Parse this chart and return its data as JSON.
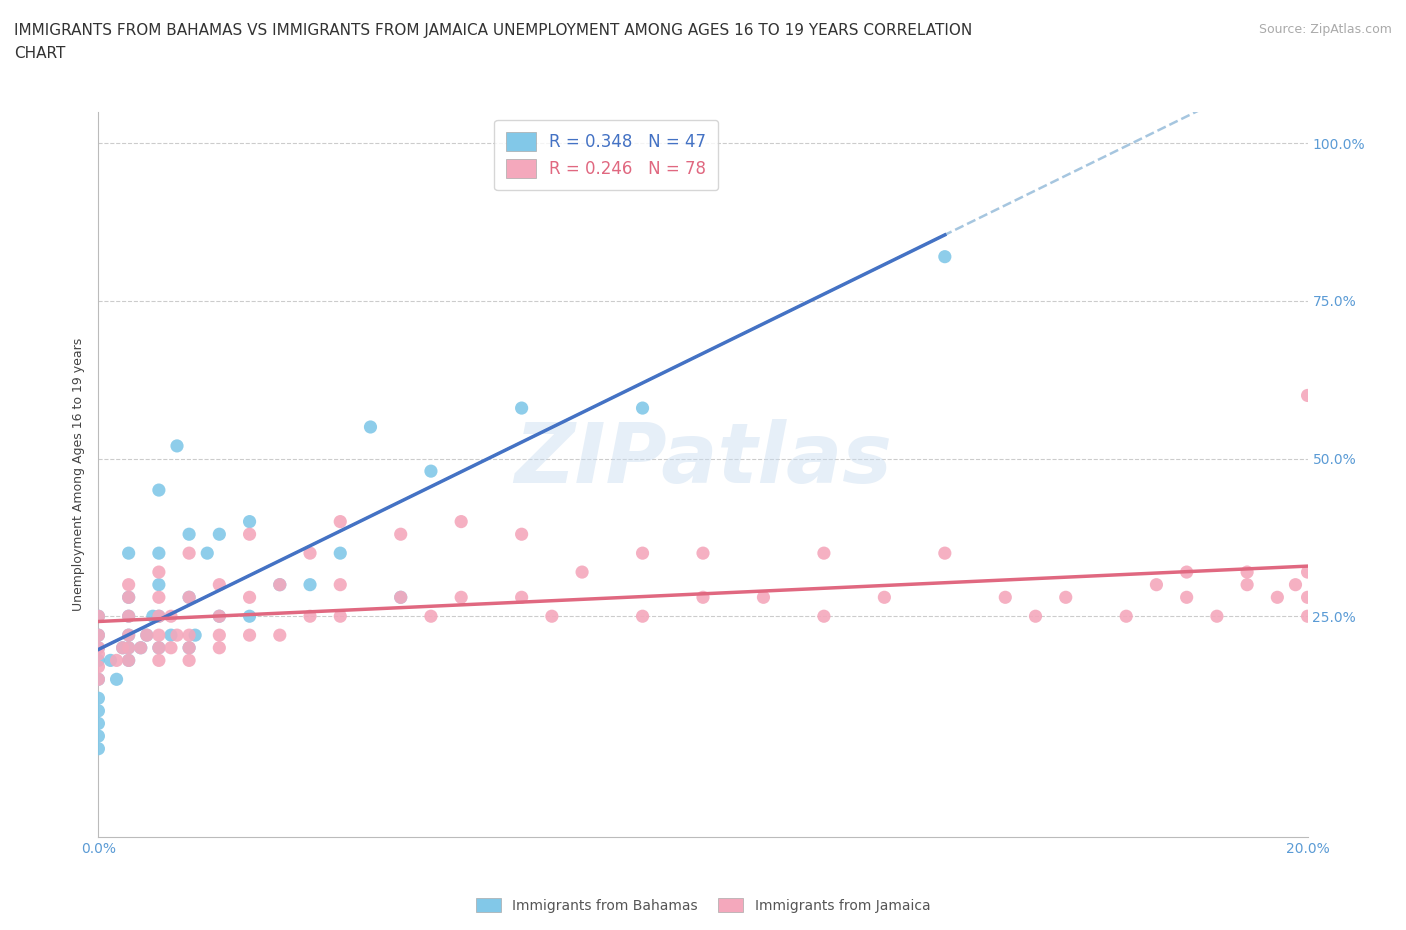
{
  "title": "IMMIGRANTS FROM BAHAMAS VS IMMIGRANTS FROM JAMAICA UNEMPLOYMENT AMONG AGES 16 TO 19 YEARS CORRELATION\nCHART",
  "source": "Source: ZipAtlas.com",
  "ylabel": "Unemployment Among Ages 16 to 19 years",
  "xlim": [
    0.0,
    0.2
  ],
  "ylim": [
    -0.1,
    1.05
  ],
  "xticks": [
    0.0,
    0.04,
    0.08,
    0.12,
    0.16,
    0.2
  ],
  "yticks": [
    0.25,
    0.5,
    0.75,
    1.0
  ],
  "yticklabels": [
    "25.0%",
    "50.0%",
    "75.0%",
    "100.0%"
  ],
  "legend1_R": "0.348",
  "legend1_N": "47",
  "legend2_R": "0.246",
  "legend2_N": "78",
  "color_bahamas": "#82C8E8",
  "color_jamaica": "#F4A8BC",
  "color_bahamas_line": "#4472C4",
  "color_jamaica_line": "#E06880",
  "color_axis_labels": "#5B9BD5",
  "watermark": "ZIPatlas",
  "bahamas_x": [
    0.0,
    0.0,
    0.0,
    0.0,
    0.0,
    0.0,
    0.0,
    0.0,
    0.0,
    0.0,
    0.002,
    0.003,
    0.004,
    0.005,
    0.005,
    0.005,
    0.005,
    0.005,
    0.005,
    0.007,
    0.008,
    0.009,
    0.01,
    0.01,
    0.01,
    0.01,
    0.01,
    0.012,
    0.013,
    0.015,
    0.015,
    0.015,
    0.016,
    0.018,
    0.02,
    0.02,
    0.025,
    0.025,
    0.03,
    0.035,
    0.04,
    0.045,
    0.05,
    0.055,
    0.07,
    0.09,
    0.14
  ],
  "bahamas_y": [
    0.04,
    0.06,
    0.08,
    0.1,
    0.12,
    0.15,
    0.18,
    0.2,
    0.22,
    0.25,
    0.18,
    0.15,
    0.2,
    0.18,
    0.2,
    0.22,
    0.25,
    0.28,
    0.35,
    0.2,
    0.22,
    0.25,
    0.2,
    0.25,
    0.3,
    0.35,
    0.45,
    0.22,
    0.52,
    0.2,
    0.28,
    0.38,
    0.22,
    0.35,
    0.25,
    0.38,
    0.25,
    0.4,
    0.3,
    0.3,
    0.35,
    0.55,
    0.28,
    0.48,
    0.58,
    0.58,
    0.82
  ],
  "jamaica_x": [
    0.0,
    0.0,
    0.0,
    0.0,
    0.0,
    0.0,
    0.003,
    0.004,
    0.005,
    0.005,
    0.005,
    0.005,
    0.005,
    0.005,
    0.007,
    0.008,
    0.01,
    0.01,
    0.01,
    0.01,
    0.01,
    0.01,
    0.012,
    0.012,
    0.013,
    0.015,
    0.015,
    0.015,
    0.015,
    0.015,
    0.02,
    0.02,
    0.02,
    0.02,
    0.025,
    0.025,
    0.025,
    0.03,
    0.03,
    0.035,
    0.035,
    0.04,
    0.04,
    0.04,
    0.05,
    0.05,
    0.055,
    0.06,
    0.06,
    0.07,
    0.07,
    0.075,
    0.08,
    0.09,
    0.09,
    0.1,
    0.1,
    0.11,
    0.12,
    0.12,
    0.13,
    0.14,
    0.15,
    0.155,
    0.16,
    0.17,
    0.175,
    0.18,
    0.18,
    0.185,
    0.19,
    0.19,
    0.195,
    0.198,
    0.2,
    0.2,
    0.2,
    0.2
  ],
  "jamaica_y": [
    0.15,
    0.17,
    0.19,
    0.2,
    0.22,
    0.25,
    0.18,
    0.2,
    0.18,
    0.2,
    0.22,
    0.25,
    0.28,
    0.3,
    0.2,
    0.22,
    0.18,
    0.2,
    0.22,
    0.25,
    0.28,
    0.32,
    0.2,
    0.25,
    0.22,
    0.18,
    0.2,
    0.22,
    0.28,
    0.35,
    0.2,
    0.22,
    0.25,
    0.3,
    0.22,
    0.28,
    0.38,
    0.22,
    0.3,
    0.25,
    0.35,
    0.25,
    0.3,
    0.4,
    0.28,
    0.38,
    0.25,
    0.28,
    0.4,
    0.28,
    0.38,
    0.25,
    0.32,
    0.25,
    0.35,
    0.28,
    0.35,
    0.28,
    0.25,
    0.35,
    0.28,
    0.35,
    0.28,
    0.25,
    0.28,
    0.25,
    0.3,
    0.28,
    0.32,
    0.25,
    0.3,
    0.32,
    0.28,
    0.3,
    0.25,
    0.28,
    0.32,
    0.6
  ],
  "background_color": "#FFFFFF",
  "grid_color": "#CCCCCC",
  "title_fontsize": 11,
  "axis_label_fontsize": 9,
  "tick_fontsize": 10
}
